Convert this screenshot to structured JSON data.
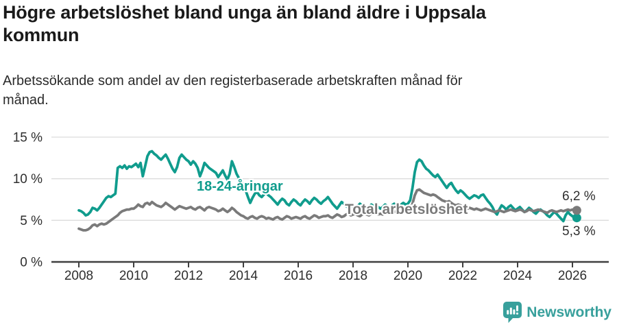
{
  "header": {
    "title": "Högre arbetslöshet bland unga än bland äldre i Uppsala\nkommun",
    "subtitle": "Arbetssökande som andel av den registerbaserade arbetskraften månad för\nmånad."
  },
  "footer": {
    "brand": "Newsworthy",
    "logo_icon": "bar-chart-speech-bubble-icon",
    "brand_color": "#38a09c"
  },
  "colors": {
    "young_series": "#109c8d",
    "total_series": "#7a7a7a",
    "axis": "#3f3f3f",
    "grid": "#dcdcdc",
    "tick_text": "#2e2e2e",
    "title_text": "#1a1a1a"
  },
  "chart_data": {
    "type": "line",
    "title": "Högre arbetslöshet bland unga än bland äldre i Uppsala kommun",
    "subtitle": "Arbetssökande som andel av den registerbaserade arbetskraften månad för månad.",
    "x_unit": "month",
    "x_start": "2008-01",
    "x_end": "2026-02",
    "xlim_years": [
      2008,
      2026.17
    ],
    "ylim": [
      0,
      15
    ],
    "grid": "horizontal-only",
    "legend_position": "inline-labels-on-lines",
    "x_ticks": [
      2008,
      2010,
      2012,
      2014,
      2016,
      2018,
      2020,
      2022,
      2024,
      2026
    ],
    "y_ticks": [
      0,
      5,
      10,
      15
    ],
    "y_tick_labels": [
      "0 %",
      "5 %",
      "10 %",
      "15 %"
    ],
    "series": [
      {
        "name": "18-24-åringar",
        "color": "#109c8d",
        "end_value_label": "5,3 %",
        "last_value": 5.3,
        "values": [
          6.2,
          6.1,
          5.9,
          5.6,
          5.7,
          6.0,
          6.5,
          6.4,
          6.2,
          6.5,
          6.9,
          7.3,
          7.7,
          7.9,
          7.8,
          8.0,
          8.2,
          11.3,
          11.5,
          11.3,
          11.6,
          11.2,
          11.5,
          11.4,
          11.6,
          11.8,
          11.4,
          11.9,
          10.3,
          11.5,
          12.7,
          13.2,
          13.3,
          13.0,
          12.8,
          12.5,
          12.3,
          12.6,
          12.9,
          12.4,
          11.8,
          11.2,
          10.8,
          11.4,
          12.5,
          12.9,
          12.6,
          12.3,
          12.1,
          11.7,
          12.1,
          11.8,
          11.3,
          10.3,
          11.0,
          11.9,
          11.6,
          11.3,
          11.1,
          10.9,
          10.7,
          10.2,
          10.6,
          11.0,
          10.4,
          9.9,
          10.6,
          12.1,
          11.4,
          10.6,
          10.1,
          9.7,
          9.3,
          8.6,
          7.8,
          7.1,
          7.7,
          8.2,
          8.4,
          8.0,
          7.8,
          8.1,
          8.3,
          8.0,
          7.8,
          7.5,
          7.2,
          6.9,
          7.3,
          7.6,
          7.4,
          7.0,
          6.8,
          7.2,
          7.5,
          7.3,
          7.0,
          6.8,
          7.2,
          7.5,
          7.3,
          7.0,
          7.4,
          7.7,
          7.5,
          7.2,
          7.0,
          7.3,
          7.5,
          7.8,
          7.4,
          7.0,
          6.7,
          6.4,
          6.8,
          7.2,
          7.0,
          6.7,
          6.5,
          6.8,
          6.6,
          6.4,
          6.7,
          7.0,
          6.8,
          6.5,
          6.3,
          6.6,
          6.9,
          6.7,
          6.4,
          6.6,
          6.4,
          6.6,
          6.9,
          6.7,
          6.5,
          6.8,
          7.0,
          6.8,
          6.6,
          6.9,
          7.1,
          6.9,
          7.0,
          7.4,
          8.9,
          10.8,
          12.0,
          12.3,
          12.1,
          11.6,
          11.2,
          11.0,
          10.7,
          10.4,
          10.2,
          10.5,
          10.1,
          9.7,
          9.3,
          8.9,
          9.3,
          9.5,
          9.0,
          8.6,
          8.3,
          8.6,
          8.4,
          8.1,
          7.8,
          7.6,
          7.8,
          8.0,
          7.9,
          7.7,
          8.0,
          8.1,
          7.7,
          7.3,
          7.0,
          6.6,
          6.0,
          5.7,
          6.3,
          6.8,
          6.6,
          6.3,
          6.6,
          6.8,
          6.5,
          6.2,
          6.4,
          6.6,
          6.3,
          6.0,
          6.2,
          6.5,
          6.3,
          6.0,
          5.8,
          6.1,
          6.3,
          6.1,
          5.9,
          5.6,
          5.4,
          5.7,
          6.0,
          5.8,
          5.5,
          5.2,
          4.9,
          5.6,
          6.0,
          5.7,
          5.5,
          5.3
        ]
      },
      {
        "name": "Total arbetslöshet",
        "color": "#7a7a7a",
        "end_value_label": "6,2 %",
        "last_value": 6.2,
        "values": [
          4.0,
          3.9,
          3.8,
          3.8,
          3.9,
          4.1,
          4.4,
          4.5,
          4.3,
          4.5,
          4.6,
          4.5,
          4.6,
          4.8,
          5.0,
          5.2,
          5.4,
          5.6,
          5.9,
          6.1,
          6.2,
          6.3,
          6.3,
          6.4,
          6.4,
          6.6,
          6.9,
          6.7,
          6.6,
          7.0,
          7.1,
          6.9,
          7.2,
          7.0,
          6.8,
          6.7,
          6.6,
          6.8,
          7.1,
          6.9,
          6.7,
          6.5,
          6.3,
          6.5,
          6.7,
          6.6,
          6.5,
          6.4,
          6.5,
          6.6,
          6.4,
          6.3,
          6.5,
          6.6,
          6.4,
          6.2,
          6.5,
          6.6,
          6.5,
          6.4,
          6.3,
          6.1,
          6.2,
          6.4,
          6.2,
          6.0,
          6.2,
          6.5,
          6.3,
          6.0,
          5.8,
          5.6,
          5.5,
          5.3,
          5.2,
          5.4,
          5.5,
          5.3,
          5.2,
          5.4,
          5.5,
          5.4,
          5.2,
          5.3,
          5.2,
          5.1,
          5.3,
          5.4,
          5.2,
          5.1,
          5.3,
          5.5,
          5.4,
          5.2,
          5.3,
          5.4,
          5.3,
          5.2,
          5.4,
          5.5,
          5.3,
          5.2,
          5.4,
          5.6,
          5.5,
          5.3,
          5.4,
          5.5,
          5.5,
          5.6,
          5.4,
          5.3,
          5.5,
          5.7,
          5.6,
          5.4,
          5.5,
          5.7,
          5.8,
          5.6,
          5.7,
          5.8,
          5.6,
          5.5,
          5.7,
          5.8,
          5.7,
          5.6,
          5.8,
          5.9,
          5.8,
          5.7,
          5.8,
          5.7,
          5.9,
          6.0,
          5.9,
          5.8,
          6.0,
          6.1,
          6.0,
          5.9,
          6.0,
          6.1,
          6.1,
          6.3,
          7.0,
          8.0,
          8.6,
          8.7,
          8.5,
          8.3,
          8.2,
          8.1,
          8.0,
          8.1,
          8.0,
          7.8,
          7.6,
          7.4,
          7.3,
          7.2,
          7.3,
          7.1,
          6.9,
          6.8,
          6.9,
          6.8,
          6.7,
          6.5,
          6.4,
          6.5,
          6.4,
          6.3,
          6.4,
          6.3,
          6.2,
          6.3,
          6.4,
          6.3,
          6.2,
          6.1,
          6.0,
          6.1,
          6.2,
          6.1,
          6.0,
          6.1,
          6.2,
          6.3,
          6.2,
          6.1,
          6.2,
          6.3,
          6.2,
          6.0,
          6.1,
          6.3,
          6.2,
          6.1,
          6.2,
          6.3,
          6.2,
          6.1,
          6.0,
          5.9,
          6.1,
          6.2,
          6.1,
          6.0,
          6.1,
          6.2,
          6.1,
          6.2,
          6.3,
          6.2,
          6.3,
          6.2
        ]
      }
    ]
  }
}
